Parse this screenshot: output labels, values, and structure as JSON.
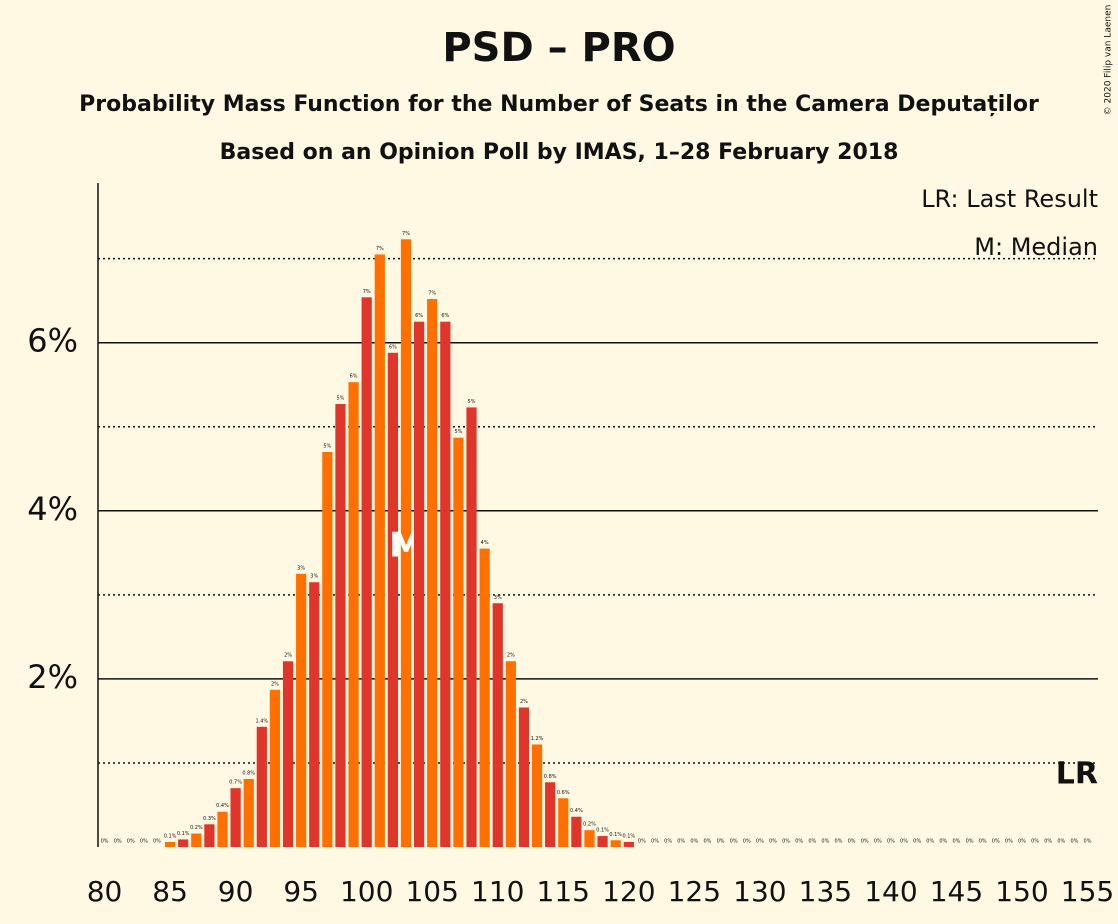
{
  "chart_data": {
    "type": "bar",
    "title": "PSD – PRO",
    "subtitle": "Probability Mass Function for the Number of Seats in the Camera Deputaților",
    "subtitle2": "Based on an Opinion Poll by IMAS, 1–28 February 2018",
    "copyright": "© 2020 Filip van Laenen",
    "legend": [
      "LR: Last Result",
      "M: Median"
    ],
    "x": [
      80,
      81,
      82,
      83,
      84,
      85,
      86,
      87,
      88,
      89,
      90,
      91,
      92,
      93,
      94,
      95,
      96,
      97,
      98,
      99,
      100,
      101,
      102,
      103,
      104,
      105,
      106,
      107,
      108,
      109,
      110,
      111,
      112,
      113,
      114,
      115,
      116,
      117,
      118,
      119,
      120,
      121,
      122,
      123,
      124,
      125,
      126,
      127,
      128,
      129,
      130,
      131,
      132,
      133,
      134,
      135,
      136,
      137,
      138,
      139,
      140,
      141,
      142,
      143,
      144,
      145,
      146,
      147,
      148,
      149,
      150,
      151,
      152,
      153,
      154,
      155
    ],
    "values": [
      0,
      0,
      0,
      0,
      0,
      0.06,
      0.09,
      0.16,
      0.27,
      0.42,
      0.7,
      0.81,
      1.43,
      1.87,
      2.21,
      3.25,
      3.15,
      4.7,
      5.27,
      5.53,
      6.54,
      7.05,
      5.88,
      7.23,
      6.25,
      6.52,
      6.25,
      4.87,
      5.23,
      3.55,
      2.9,
      2.21,
      1.66,
      1.22,
      0.77,
      0.58,
      0.36,
      0.2,
      0.13,
      0.08,
      0.06,
      0,
      0,
      0,
      0,
      0,
      0,
      0,
      0,
      0,
      0,
      0,
      0,
      0,
      0,
      0,
      0,
      0,
      0,
      0,
      0,
      0,
      0,
      0,
      0,
      0,
      0,
      0,
      0,
      0,
      0,
      0,
      0,
      0,
      0,
      0
    ],
    "value_labels": [
      "0%",
      "0%",
      "0%",
      "0%",
      "0%",
      "0.1%",
      "0.1%",
      "0.2%",
      "0.3%",
      "0.4%",
      "0.7%",
      "0.8%",
      "1.4%",
      "2%",
      "2%",
      "3%",
      "3%",
      "5%",
      "5%",
      "6%",
      "7%",
      "7%",
      "6%",
      "7%",
      "6%",
      "7%",
      "6%",
      "5%",
      "5%",
      "4%",
      "3%",
      "2%",
      "2%",
      "1.2%",
      "0.8%",
      "0.6%",
      "0.4%",
      "0.2%",
      "0.1%",
      "0.1%",
      "0.1%",
      "0%",
      "0%",
      "0%",
      "0%",
      "0%",
      "0%",
      "0%",
      "0%",
      "0%",
      "0%",
      "0%",
      "0%",
      "0%",
      "0%",
      "0%",
      "0%",
      "0%",
      "0%",
      "0%",
      "0%",
      "0%",
      "0%",
      "0%",
      "0%",
      "0%",
      "0%",
      "0%",
      "0%",
      "0%",
      "0%",
      "0%",
      "0%",
      "0%",
      "0%",
      "0%"
    ],
    "colors": [
      "#e0352b",
      "#ff7000"
    ],
    "median": 103,
    "median_label": "M",
    "last_result": 155,
    "last_result_label": "LR",
    "xlim": [
      79.5,
      155.8
    ],
    "xticks": [
      80,
      85,
      90,
      95,
      100,
      105,
      110,
      115,
      120,
      125,
      130,
      135,
      140,
      145,
      150,
      155
    ],
    "ylim": [
      0,
      7.9
    ],
    "yticks": [
      {
        "value": 2,
        "label": "2%"
      },
      {
        "value": 4,
        "label": "4%"
      },
      {
        "value": 6,
        "label": "6%"
      }
    ],
    "minor_gridlines": [
      1,
      3,
      5,
      7
    ],
    "grid": true
  }
}
